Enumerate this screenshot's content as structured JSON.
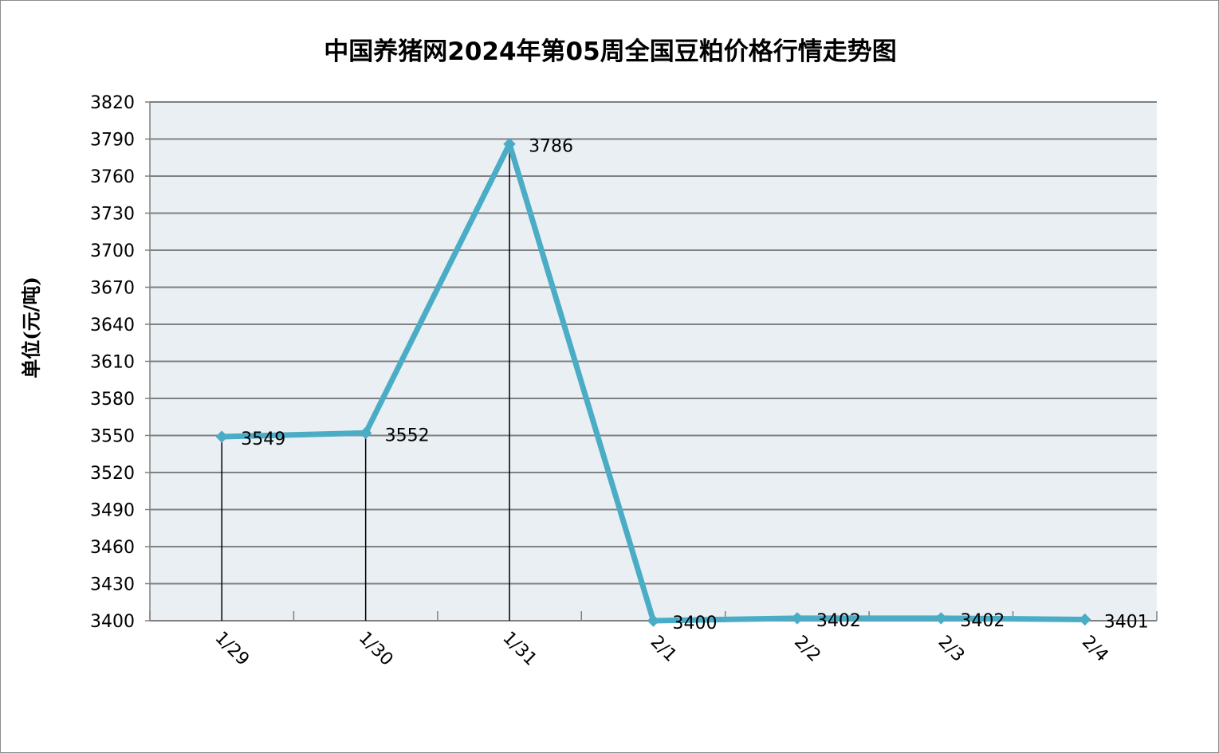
{
  "chart_data": {
    "type": "line",
    "title": "中国养猪网2024年第05周全国豆粕价格行情走势图",
    "ylabel": "单位(元/吨)",
    "xlabel": "",
    "categories": [
      "1/29",
      "1/30",
      "1/31",
      "2/1",
      "2/2",
      "2/3",
      "2/4"
    ],
    "values": [
      3549,
      3552,
      3786,
      3400,
      3402,
      3402,
      3401
    ],
    "data_labels": [
      "3549",
      "3552",
      "3786",
      "3400",
      "3402",
      "3402",
      "3401"
    ],
    "ylim": [
      3400,
      3820
    ],
    "yticks": [
      3400,
      3430,
      3460,
      3490,
      3520,
      3550,
      3580,
      3610,
      3640,
      3670,
      3700,
      3730,
      3760,
      3790,
      3820
    ],
    "grid": true,
    "legend": "none",
    "colors": {
      "line": "#4BACC6",
      "plot_bg": "#E9EFF3",
      "grid": "#808080",
      "drop_lines": "#000000"
    }
  }
}
